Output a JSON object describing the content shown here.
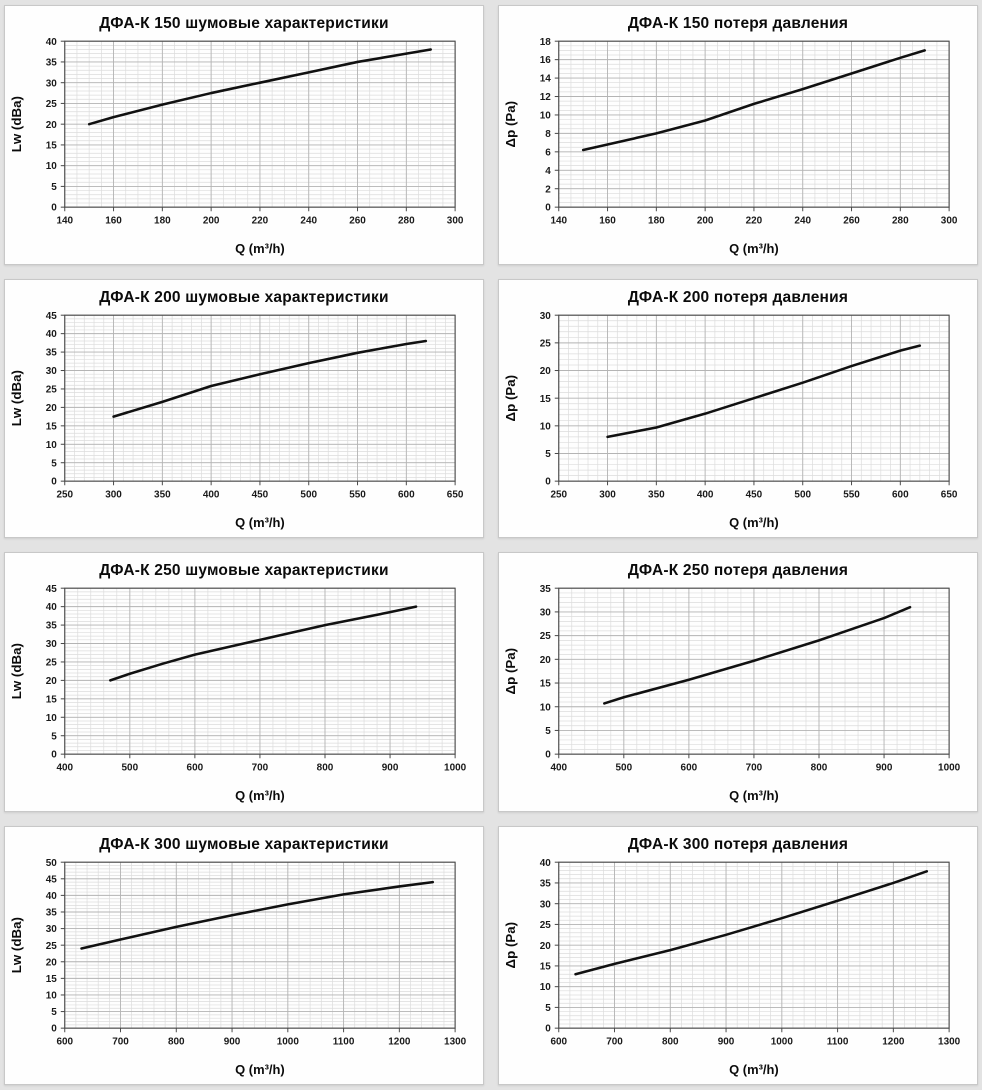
{
  "page": {
    "background_color": "#e3e3e3",
    "panel_background": "#fefefe",
    "panel_border_color": "#c8c8c8",
    "minor_grid_color": "#dcdcdc",
    "major_grid_color": "#b4b4b4",
    "plot_border_color": "#4a4a4a",
    "text_color": "#0b0b0b"
  },
  "chart_data": [
    {
      "type": "line",
      "title": "ДФА-К 150 шумовые характеристики",
      "xlabel": "Q (m³/h)",
      "ylabel": "Lw (dBa)",
      "xlim": [
        140,
        300
      ],
      "ylim": [
        0,
        40
      ],
      "xticks": [
        140,
        160,
        180,
        200,
        220,
        240,
        260,
        280,
        300
      ],
      "yticks": [
        0,
        5,
        10,
        15,
        20,
        25,
        30,
        35,
        40
      ],
      "xminor": 5,
      "yminor": 1,
      "grid": true,
      "legend": false,
      "line_color": "#111111",
      "x": [
        150,
        160,
        180,
        200,
        220,
        240,
        260,
        280,
        290
      ],
      "y": [
        20,
        21.7,
        24.7,
        27.5,
        30,
        32.5,
        35,
        37,
        38
      ]
    },
    {
      "type": "line",
      "title": "ДФА-К 150 потеря давления",
      "xlabel": "Q (m³/h)",
      "ylabel": "Δp (Pa)",
      "xlim": [
        140,
        300
      ],
      "ylim": [
        0,
        18
      ],
      "xticks": [
        140,
        160,
        180,
        200,
        220,
        240,
        260,
        280,
        300
      ],
      "yticks": [
        0,
        2,
        4,
        6,
        8,
        10,
        12,
        14,
        16,
        18
      ],
      "xminor": 5,
      "yminor": 0.5,
      "grid": true,
      "legend": false,
      "line_color": "#111111",
      "x": [
        150,
        160,
        180,
        200,
        220,
        240,
        260,
        280,
        290
      ],
      "y": [
        6.2,
        6.8,
        8.0,
        9.4,
        11.2,
        12.8,
        14.5,
        16.2,
        17
      ]
    },
    {
      "type": "line",
      "title": "ДФА-К 200 шумовые характеристики",
      "xlabel": "Q (m³/h)",
      "ylabel": "Lw (dBa)",
      "xlim": [
        250,
        650
      ],
      "ylim": [
        0,
        45
      ],
      "xticks": [
        250,
        300,
        350,
        400,
        450,
        500,
        550,
        600,
        650
      ],
      "yticks": [
        0,
        5,
        10,
        15,
        20,
        25,
        30,
        35,
        40,
        45
      ],
      "xminor": 10,
      "yminor": 1,
      "grid": true,
      "legend": false,
      "line_color": "#111111",
      "x": [
        300,
        350,
        400,
        450,
        500,
        550,
        600,
        620
      ],
      "y": [
        17.5,
        21.5,
        25.8,
        29,
        32,
        34.8,
        37.2,
        38
      ]
    },
    {
      "type": "line",
      "title": "ДФА-К 200 потеря давления",
      "xlabel": "Q (m³/h)",
      "ylabel": "Δp (Pa)",
      "xlim": [
        250,
        650
      ],
      "ylim": [
        0,
        30
      ],
      "xticks": [
        250,
        300,
        350,
        400,
        450,
        500,
        550,
        600,
        650
      ],
      "yticks": [
        0,
        5,
        10,
        15,
        20,
        25,
        30
      ],
      "xminor": 10,
      "yminor": 1,
      "grid": true,
      "legend": false,
      "line_color": "#111111",
      "x": [
        300,
        350,
        400,
        450,
        500,
        550,
        600,
        620
      ],
      "y": [
        8,
        9.7,
        12.2,
        15,
        17.8,
        20.8,
        23.6,
        24.5
      ]
    },
    {
      "type": "line",
      "title": "ДФА-К 250 шумовые характеристики",
      "xlabel": "Q (m³/h)",
      "ylabel": "Lw (dBa)",
      "xlim": [
        400,
        1000
      ],
      "ylim": [
        0,
        45
      ],
      "xticks": [
        400,
        500,
        600,
        700,
        800,
        900,
        1000
      ],
      "yticks": [
        0,
        5,
        10,
        15,
        20,
        25,
        30,
        35,
        40,
        45
      ],
      "xminor": 20,
      "yminor": 1,
      "grid": true,
      "legend": false,
      "line_color": "#111111",
      "x": [
        470,
        500,
        550,
        600,
        700,
        800,
        900,
        940
      ],
      "y": [
        20,
        21.8,
        24.5,
        27,
        31,
        35,
        38.5,
        40
      ]
    },
    {
      "type": "line",
      "title": "ДФА-К 250 потеря давления",
      "xlabel": "Q (m³/h)",
      "ylabel": "Δp (Pa)",
      "xlim": [
        400,
        1000
      ],
      "ylim": [
        0,
        35
      ],
      "xticks": [
        400,
        500,
        600,
        700,
        800,
        900,
        1000
      ],
      "yticks": [
        0,
        5,
        10,
        15,
        20,
        25,
        30,
        35
      ],
      "xminor": 20,
      "yminor": 1,
      "grid": true,
      "legend": false,
      "line_color": "#111111",
      "x": [
        470,
        500,
        600,
        700,
        800,
        900,
        940
      ],
      "y": [
        10.7,
        12,
        15.7,
        19.7,
        24,
        28.7,
        31
      ]
    },
    {
      "type": "line",
      "title": "ДФА-К 300 шумовые характеристики",
      "xlabel": "Q (m³/h)",
      "ylabel": "Lw (dBa)",
      "xlim": [
        600,
        1300
      ],
      "ylim": [
        0,
        50
      ],
      "xticks": [
        600,
        700,
        800,
        900,
        1000,
        1100,
        1200,
        1300
      ],
      "yticks": [
        0,
        5,
        10,
        15,
        20,
        25,
        30,
        35,
        40,
        45,
        50
      ],
      "xminor": 20,
      "yminor": 1,
      "grid": true,
      "legend": false,
      "line_color": "#111111",
      "x": [
        630,
        700,
        800,
        900,
        1000,
        1100,
        1200,
        1260
      ],
      "y": [
        24,
        26.7,
        30.5,
        34,
        37.3,
        40.3,
        42.7,
        44
      ]
    },
    {
      "type": "line",
      "title": "ДФА-К 300 потеря давления",
      "xlabel": "Q (m³/h)",
      "ylabel": "Δp (Pa)",
      "xlim": [
        600,
        1300
      ],
      "ylim": [
        0,
        40
      ],
      "xticks": [
        600,
        700,
        800,
        900,
        1000,
        1100,
        1200,
        1300
      ],
      "yticks": [
        0,
        5,
        10,
        15,
        20,
        25,
        30,
        35,
        40
      ],
      "xminor": 20,
      "yminor": 1,
      "grid": true,
      "legend": false,
      "line_color": "#111111",
      "x": [
        630,
        700,
        800,
        900,
        1000,
        1100,
        1200,
        1260
      ],
      "y": [
        13,
        15.5,
        18.8,
        22.5,
        26.5,
        30.7,
        35,
        37.8
      ]
    }
  ]
}
